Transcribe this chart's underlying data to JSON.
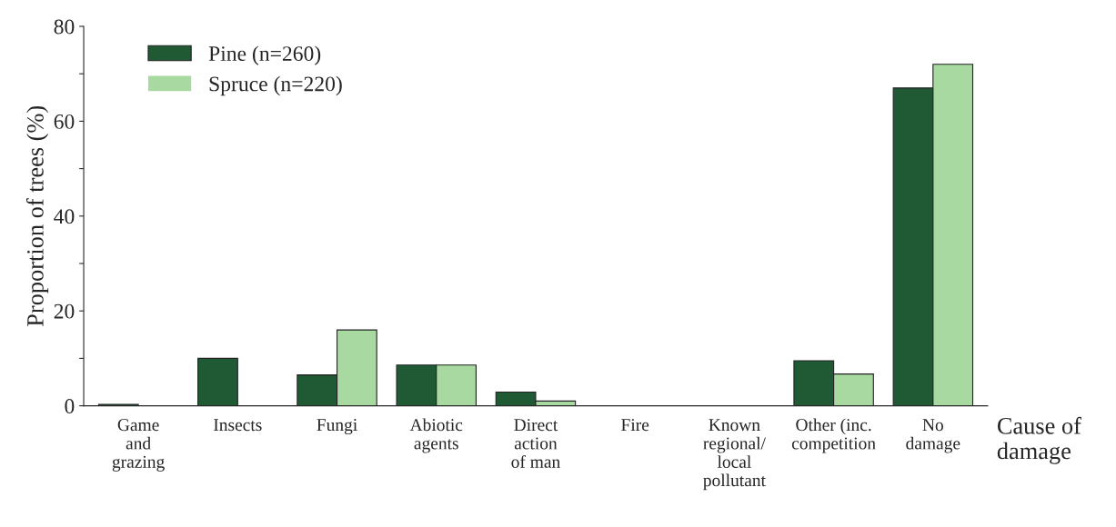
{
  "chart_data": {
    "type": "bar",
    "categories": [
      "Game\nand\ngrazing",
      "Insects",
      "Fungi",
      "Abiotic\nagents",
      "Direct\naction\nof man",
      "Fire",
      "Known\nregional/\nlocal\npollutant",
      "Other (inc.\ncompetition",
      "No\ndamage"
    ],
    "series": [
      {
        "name": "Pine (n=260)",
        "color": "#1f5a35",
        "values": [
          0.3,
          10,
          6.5,
          8.6,
          2.9,
          0,
          0,
          9.5,
          67
        ]
      },
      {
        "name": "Spruce (n=220)",
        "color": "#a8d9a0",
        "values": [
          0,
          0,
          16,
          8.6,
          1,
          0,
          0,
          6.7,
          72
        ]
      }
    ],
    "xlabel": "Cause of\ndamage",
    "ylabel": "Proportion of trees (%)",
    "ylim": [
      0,
      80
    ],
    "yticks": [
      0,
      {
        "value": 10,
        "label": null
      },
      20,
      {
        "value": 30,
        "label": null
      },
      40,
      {
        "value": 50,
        "label": null
      },
      60,
      {
        "value": 70,
        "label": null
      },
      80
    ],
    "grid": false,
    "legend": "top left"
  }
}
